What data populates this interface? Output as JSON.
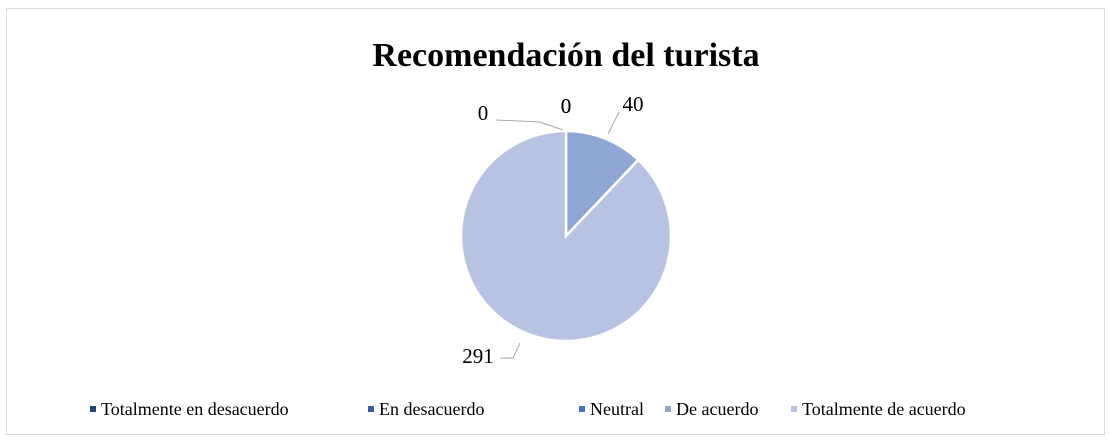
{
  "chart_data": {
    "type": "pie",
    "title": "Recomendación del turista",
    "categories": [
      "Totalmente en desacuerdo",
      "En desacuerdo",
      "Neutral",
      "De acuerdo",
      "Totalmente de acuerdo"
    ],
    "values": [
      0,
      0,
      0,
      40,
      291
    ],
    "colors": [
      "#264478",
      "#3a5ca8",
      "#4472c4",
      "#8fa5d6",
      "#b8c3e3"
    ],
    "legend": "bottom"
  }
}
